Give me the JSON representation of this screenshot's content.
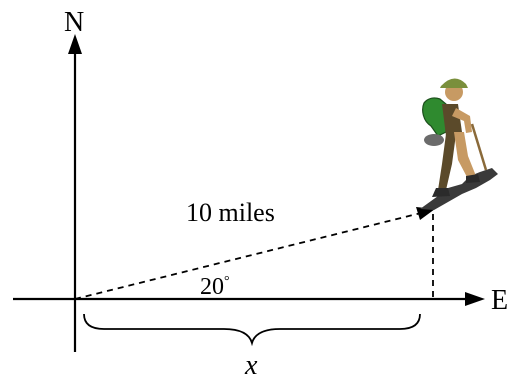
{
  "axes": {
    "north_label": "N",
    "east_label": "E"
  },
  "path": {
    "distance_label": "10 miles",
    "angle_label": "20",
    "angle_unit_symbol": "°",
    "horizontal_label": "x"
  },
  "figure": {
    "icon": "hiker-icon"
  },
  "colors": {
    "ink": "#000000",
    "skin": "#c79a63",
    "backpack": "#2f8a2f",
    "clothes": "#5b4a2a",
    "rock": "#3a3a3a",
    "hat": "#7a8f3c"
  }
}
